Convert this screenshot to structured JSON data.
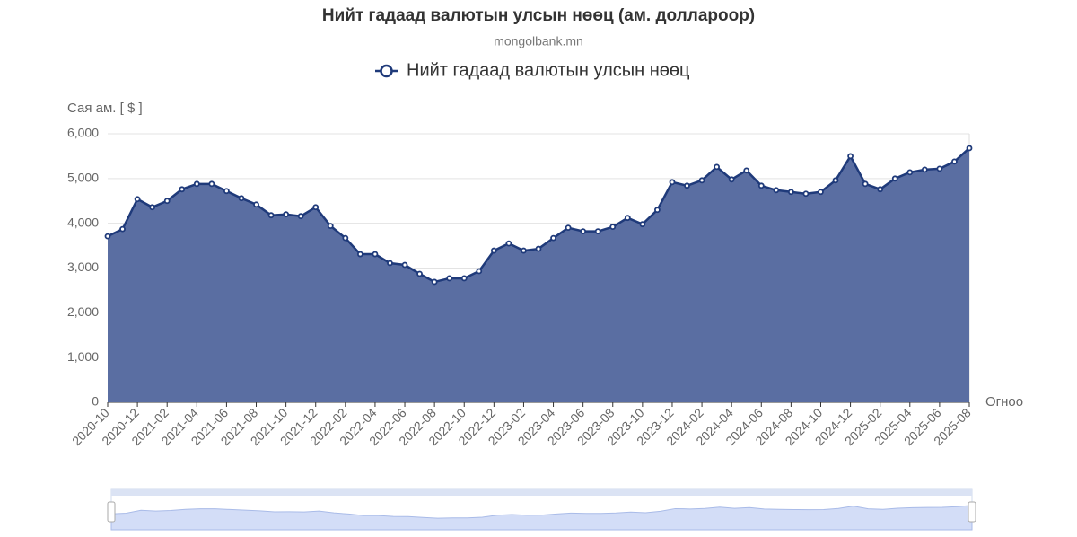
{
  "chart_data": {
    "type": "area",
    "title": "Нийт гадаад валютын улсын нөөц (ам. доллароор)",
    "subtitle": "mongolbank.mn",
    "y_label": "Сая ам. [ $ ]",
    "x_label": "Огноо",
    "categories": [
      "2020-10",
      null,
      "2020-12",
      null,
      "2021-02",
      null,
      "2021-04",
      null,
      "2021-06",
      null,
      "2021-08",
      null,
      "2021-10",
      null,
      "2021-12",
      null,
      "2022-02",
      null,
      "2022-04",
      null,
      "2022-06",
      null,
      "2022-08",
      null,
      "2022-10",
      null,
      "2022-12",
      null,
      "2023-02",
      null,
      "2023-04",
      null,
      "2023-06",
      null,
      "2023-08",
      null,
      "2023-10",
      null,
      "2023-12",
      null,
      "2024-02",
      null,
      "2024-04",
      null,
      "2024-06",
      null,
      "2024-08",
      null,
      "2024-10",
      null,
      "2024-12",
      null,
      "2025-02",
      null,
      "2025-04",
      null,
      "2025-06",
      null,
      "2025-08"
    ],
    "series": [
      {
        "name": "Нийт гадаад валютын улсын нөөц",
        "color": "#1f3a7a",
        "fill": "#5a6ea2",
        "values": [
          3710,
          3870,
          4540,
          4360,
          4500,
          4760,
          4880,
          4880,
          4720,
          4560,
          4420,
          4180,
          4200,
          4160,
          4360,
          3940,
          3670,
          3310,
          3310,
          3110,
          3070,
          2870,
          2690,
          2770,
          2770,
          2930,
          3390,
          3550,
          3390,
          3430,
          3670,
          3900,
          3820,
          3820,
          3920,
          4120,
          3980,
          4300,
          4920,
          4840,
          4960,
          5260,
          4980,
          5180,
          4840,
          4740,
          4700,
          4660,
          4700,
          4960,
          5500,
          4880,
          4760,
          5000,
          5140,
          5200,
          5220,
          5380,
          5680
        ]
      }
    ],
    "ylim": [
      0,
      6000
    ],
    "yticks": [
      0,
      {
        "value": 1000,
        "label": "1,000"
      },
      {
        "value": 2000,
        "label": "2,000"
      },
      {
        "value": 3000,
        "label": "3,000"
      },
      {
        "value": 4000,
        "label": "4,000"
      },
      {
        "value": 5000,
        "label": "5,000"
      },
      {
        "value": 6000,
        "label": "6,000"
      }
    ],
    "grid": true,
    "legend": "top"
  }
}
